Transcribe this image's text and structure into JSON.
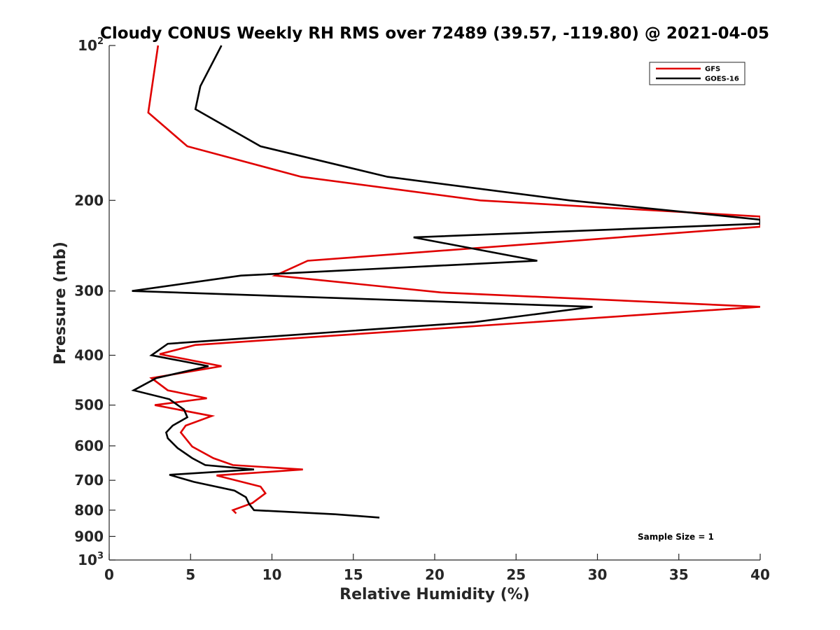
{
  "chart_data": {
    "type": "line",
    "title": "Cloudy CONUS Weekly RH RMS over 72489 (39.57, -119.80) @ 2021-04-05",
    "xlabel": "Relative Humidity (%)",
    "ylabel": "Pressure (mb)",
    "xlim": [
      0,
      40
    ],
    "ylim": [
      100,
      1000
    ],
    "y_scale": "log",
    "y_reversed": true,
    "grid": false,
    "legend_position": "top-right",
    "annotation": "Sample Size = 1",
    "x_ticks": [
      {
        "value": 0,
        "label": "0"
      },
      {
        "value": 5,
        "label": "5"
      },
      {
        "value": 10,
        "label": "10"
      },
      {
        "value": 15,
        "label": "15"
      },
      {
        "value": 20,
        "label": "20"
      },
      {
        "value": 25,
        "label": "25"
      },
      {
        "value": 30,
        "label": "30"
      },
      {
        "value": 35,
        "label": "35"
      },
      {
        "value": 40,
        "label": "40"
      }
    ],
    "y_ticks": [
      {
        "value": 100,
        "base": "10",
        "exp": "2"
      },
      {
        "value": 200,
        "label": "200"
      },
      {
        "value": 300,
        "label": "300"
      },
      {
        "value": 400,
        "label": "400"
      },
      {
        "value": 500,
        "label": "500"
      },
      {
        "value": 600,
        "label": "600"
      },
      {
        "value": 700,
        "label": "700"
      },
      {
        "value": 800,
        "label": "800"
      },
      {
        "value": 900,
        "label": "900"
      },
      {
        "value": 1000,
        "base": "10",
        "exp": "3"
      }
    ],
    "series": [
      {
        "name": "GFS",
        "color": "#e00000",
        "points": [
          [
            3.0,
            100
          ],
          [
            2.4,
            135
          ],
          [
            4.8,
            157
          ],
          [
            11.8,
            180
          ],
          [
            22.8,
            200
          ],
          [
            40.0,
            215
          ],
          [
            40.0,
            225
          ],
          [
            12.2,
            262
          ],
          [
            10.2,
            280
          ],
          [
            20.4,
            302
          ],
          [
            40.0,
            322
          ],
          [
            5.3,
            382
          ],
          [
            3.1,
            398
          ],
          [
            6.9,
            420
          ],
          [
            2.6,
            443
          ],
          [
            3.6,
            468
          ],
          [
            6.0,
            485
          ],
          [
            2.8,
            500
          ],
          [
            6.3,
            525
          ],
          [
            4.7,
            548
          ],
          [
            4.4,
            565
          ],
          [
            5.1,
            602
          ],
          [
            6.4,
            634
          ],
          [
            7.6,
            654
          ],
          [
            11.9,
            667
          ],
          [
            6.6,
            685
          ],
          [
            9.3,
            720
          ],
          [
            9.6,
            742
          ],
          [
            8.8,
            775
          ],
          [
            7.6,
            800
          ],
          [
            7.8,
            812
          ]
        ]
      },
      {
        "name": "GOES-16",
        "color": "#000000",
        "points": [
          [
            6.9,
            100
          ],
          [
            5.6,
            120
          ],
          [
            5.3,
            133
          ],
          [
            9.3,
            157
          ],
          [
            17.1,
            180
          ],
          [
            28.3,
            200
          ],
          [
            40.0,
            218
          ],
          [
            40.0,
            222
          ],
          [
            18.7,
            236
          ],
          [
            26.3,
            262
          ],
          [
            8.1,
            280
          ],
          [
            1.4,
            300
          ],
          [
            29.7,
            322
          ],
          [
            22.4,
            345
          ],
          [
            3.6,
            380
          ],
          [
            2.6,
            400
          ],
          [
            6.1,
            420
          ],
          [
            2.9,
            443
          ],
          [
            1.5,
            468
          ],
          [
            3.7,
            487
          ],
          [
            4.6,
            510
          ],
          [
            4.8,
            528
          ],
          [
            3.9,
            548
          ],
          [
            3.5,
            565
          ],
          [
            3.6,
            580
          ],
          [
            4.2,
            606
          ],
          [
            5.1,
            634
          ],
          [
            5.9,
            654
          ],
          [
            8.9,
            667
          ],
          [
            3.7,
            683
          ],
          [
            5.2,
            705
          ],
          [
            7.7,
            733
          ],
          [
            8.4,
            755
          ],
          [
            8.6,
            778
          ],
          [
            8.9,
            800
          ],
          [
            13.9,
            815
          ],
          [
            16.6,
            827
          ]
        ]
      }
    ]
  }
}
